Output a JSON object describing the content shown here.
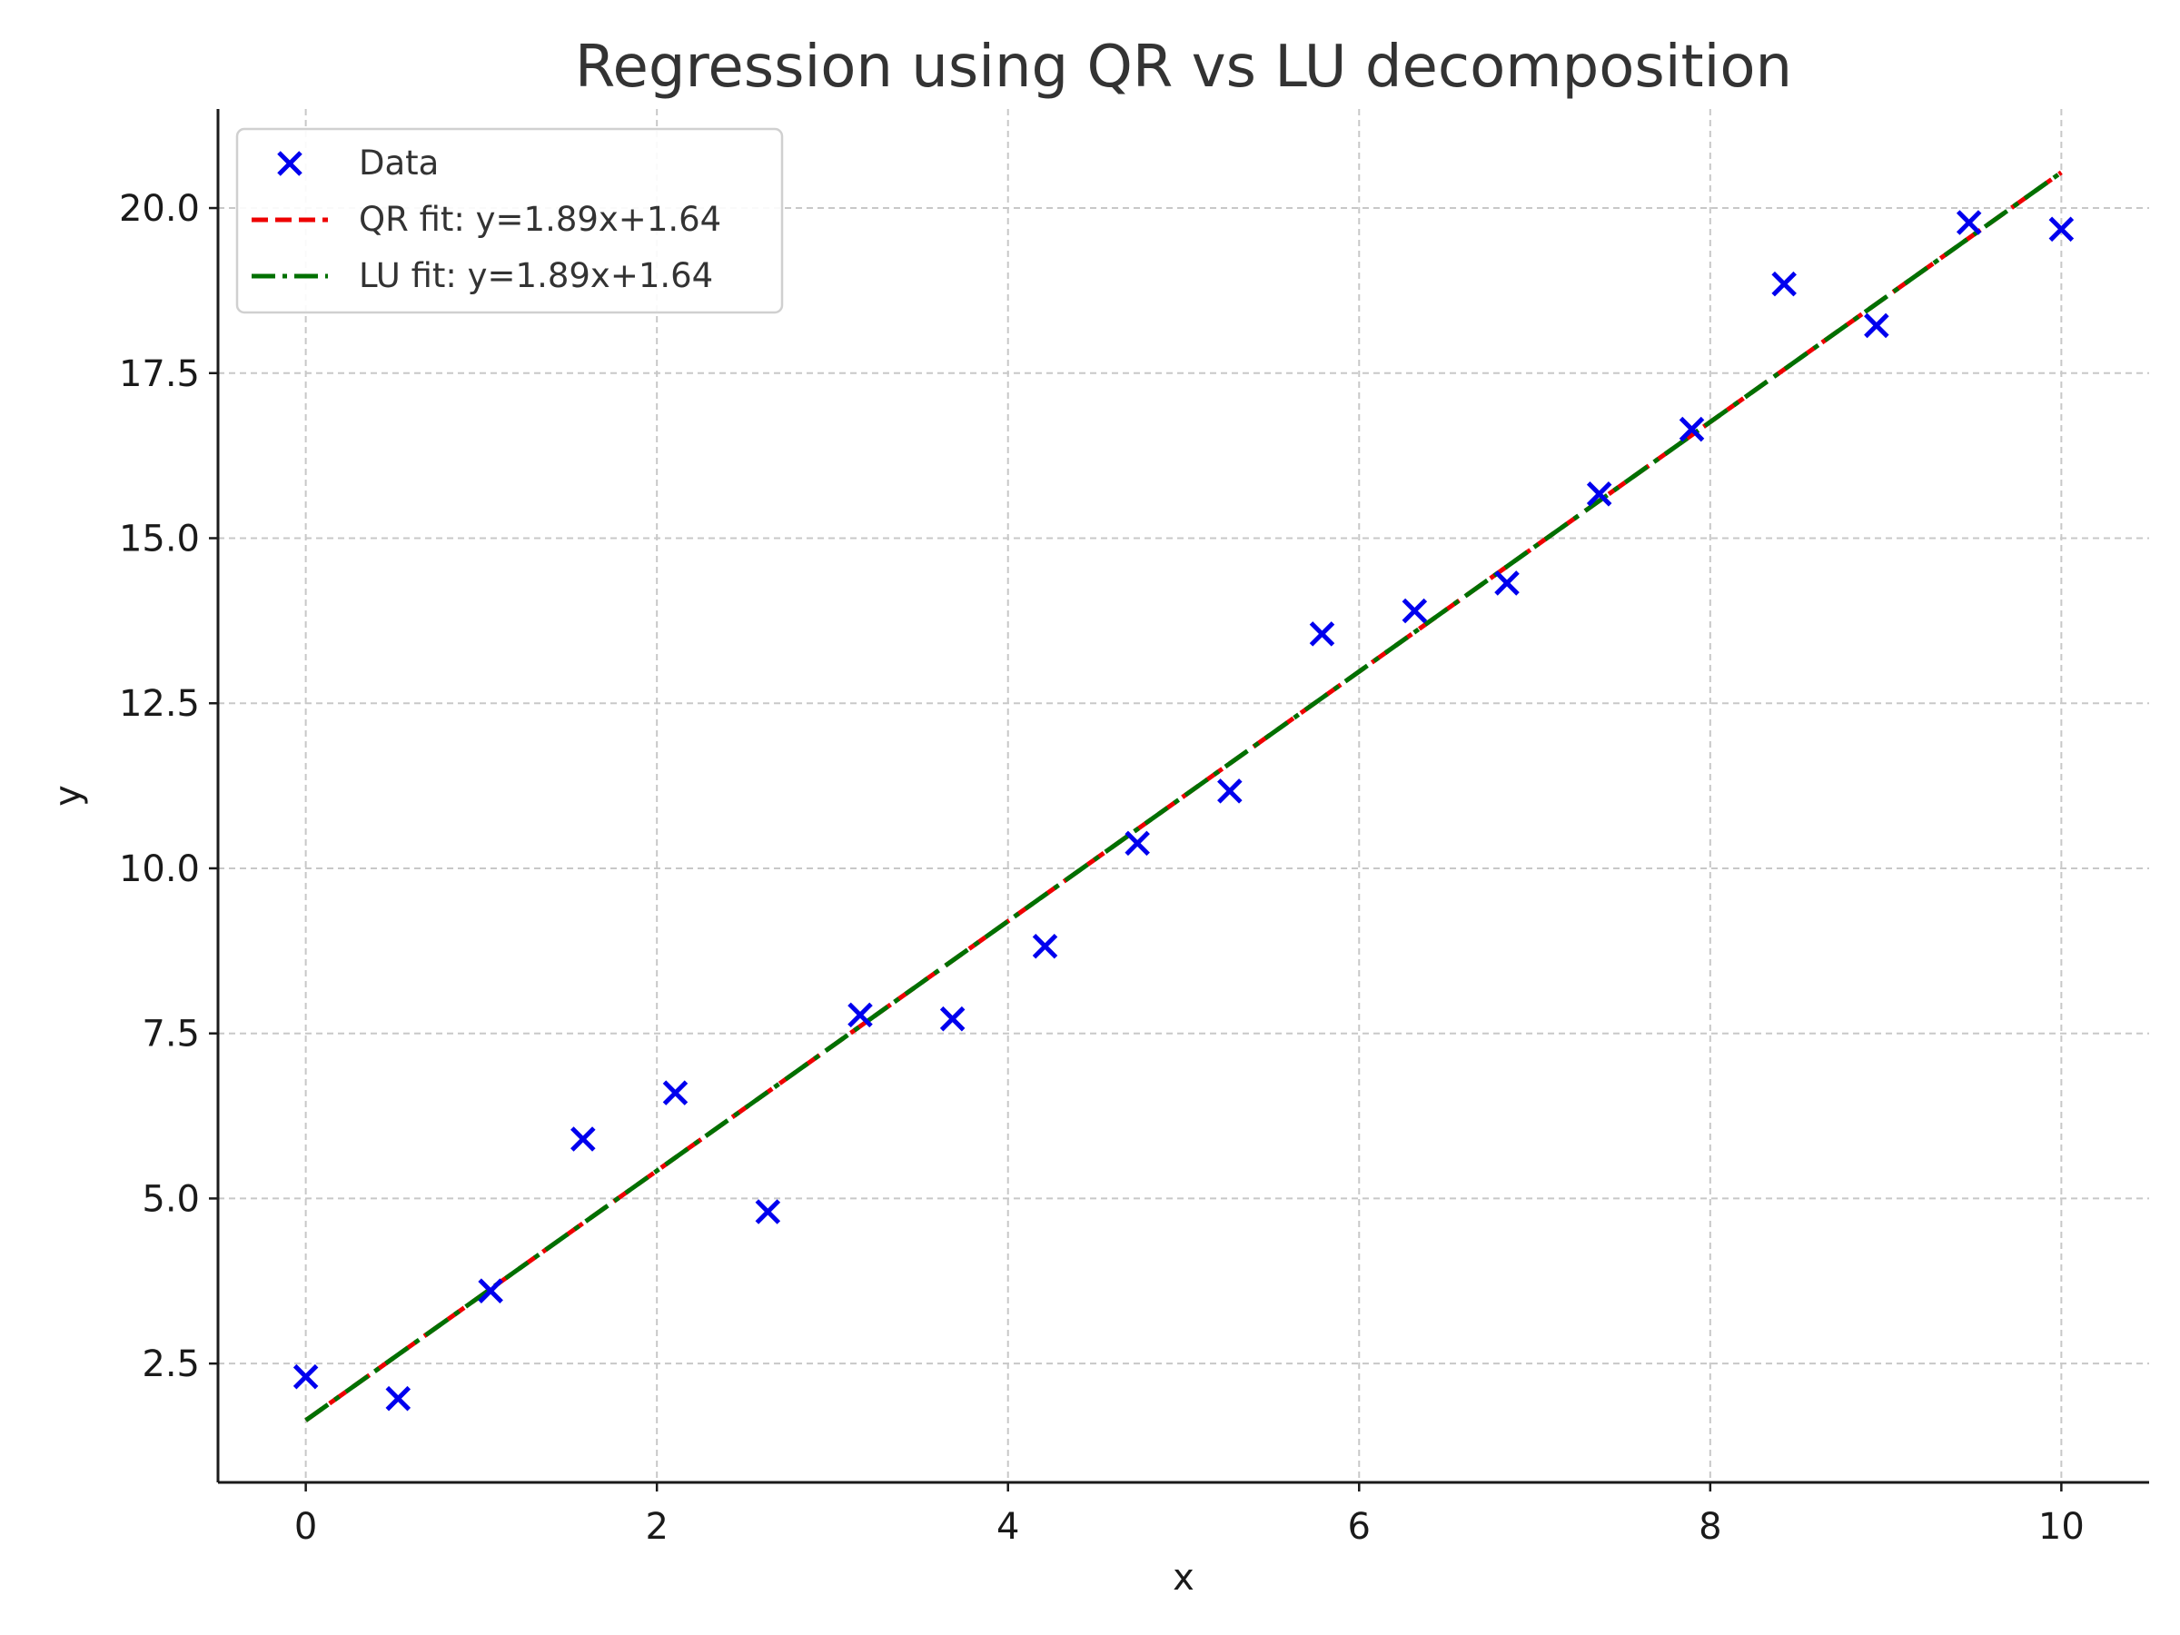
{
  "chart_data": {
    "type": "scatter",
    "title": "Regression using QR vs LU decomposition",
    "xlabel": "x",
    "ylabel": "y",
    "xlim": [
      -0.5,
      10.5
    ],
    "ylim": [
      0.7,
      21.5
    ],
    "xticks": [
      0,
      2,
      4,
      6,
      8,
      10
    ],
    "xtick_labels": [
      "0",
      "2",
      "4",
      "6",
      "8",
      "10"
    ],
    "yticks": [
      2.5,
      5.0,
      7.5,
      10.0,
      12.5,
      15.0,
      17.5,
      20.0
    ],
    "ytick_labels": [
      "2.5",
      "5.0",
      "7.5",
      "10.0",
      "12.5",
      "15.0",
      "17.5",
      "20.0"
    ],
    "grid": true,
    "legend_position": "top-left",
    "series": [
      {
        "name": "Data",
        "kind": "scatter",
        "marker": "x",
        "color": "#0000ee",
        "x": [
          0.0,
          0.526,
          1.053,
          1.579,
          2.105,
          2.632,
          3.158,
          3.684,
          4.211,
          4.737,
          5.263,
          5.789,
          6.316,
          6.842,
          7.368,
          7.895,
          8.421,
          8.947,
          9.474,
          10.0
        ],
        "y": [
          2.3,
          1.97,
          3.6,
          5.9,
          6.6,
          4.8,
          7.78,
          7.72,
          8.82,
          10.38,
          11.17,
          13.55,
          13.9,
          14.32,
          15.67,
          16.65,
          18.85,
          18.22,
          19.78,
          19.68
        ]
      },
      {
        "name": "QR fit: y=1.89x+1.64",
        "kind": "line",
        "style": "dashed",
        "color": "#ee0000",
        "slope": 1.89,
        "intercept": 1.64,
        "x": [
          0,
          10
        ]
      },
      {
        "name": "LU fit: y=1.89x+1.64",
        "kind": "line",
        "style": "dashdot",
        "color": "#007000",
        "slope": 1.89,
        "intercept": 1.64,
        "x": [
          0,
          10
        ]
      }
    ]
  }
}
